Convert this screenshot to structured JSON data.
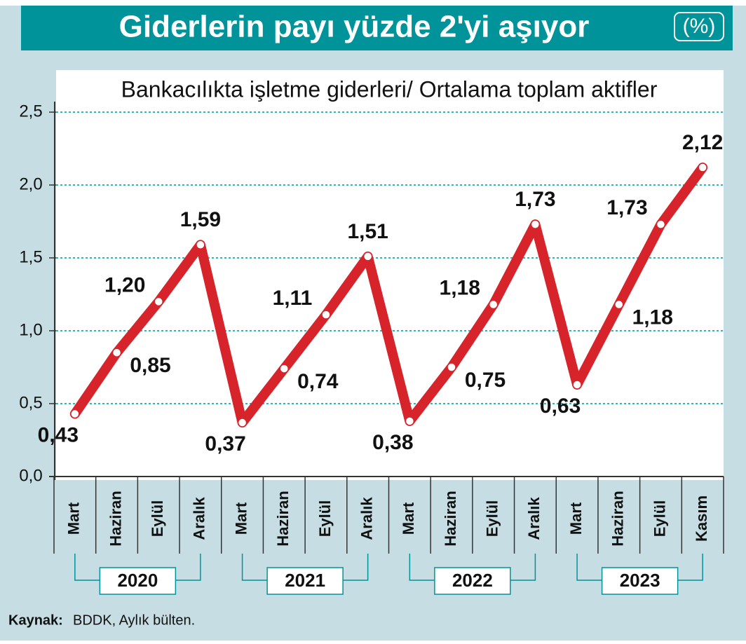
{
  "chart_data": {
    "type": "line",
    "title": "Giderlerin payı yüzde 2'yi aşıyor",
    "unit": "(%)",
    "subtitle": "Bankacılıkta işletme giderleri/ Ortalama toplam aktifler",
    "categories": [
      "Mart",
      "Haziran",
      "Eylül",
      "Aralık",
      "Mart",
      "Haziran",
      "Eylül",
      "Aralık",
      "Mart",
      "Haziran",
      "Eylül",
      "Aralık",
      "Mart",
      "Haziran",
      "Eylül",
      "Kasım"
    ],
    "year_groups": [
      "2020",
      "2021",
      "2022",
      "2023"
    ],
    "series": [
      {
        "name": "Bankacılıkta işletme giderleri/ Ortalama toplam aktifler",
        "color": "#d7242b",
        "values": [
          0.43,
          0.85,
          1.2,
          1.59,
          0.37,
          0.74,
          1.11,
          1.51,
          0.38,
          0.75,
          1.18,
          1.73,
          0.63,
          1.18,
          1.73,
          2.12
        ],
        "value_labels": [
          "0,43",
          "0,85",
          "1,20",
          "1,59",
          "0,37",
          "0,74",
          "1,11",
          "1,51",
          "0,38",
          "0,75",
          "1,18",
          "1,73",
          "0,63",
          "1,18",
          "1,73",
          "2,12"
        ]
      }
    ],
    "ylim": [
      0,
      2.5
    ],
    "yticks": [
      {
        "value": 0,
        "label": "0,0"
      },
      {
        "value": 0.5,
        "label": "0,5"
      },
      {
        "value": 1,
        "label": "1,0"
      },
      {
        "value": 1.5,
        "label": "1,5"
      },
      {
        "value": 2,
        "label": "2,0"
      },
      {
        "value": 2.5,
        "label": "2,5"
      }
    ],
    "grid": true,
    "source_label": "Kaynak:",
    "source_text": "BDDK, Aylık bülten."
  }
}
